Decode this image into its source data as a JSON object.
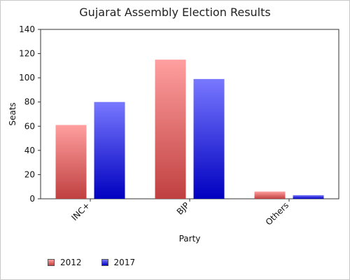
{
  "chart_data": {
    "type": "bar",
    "title": "Gujarat Assembly Election Results",
    "xlabel": "Party",
    "ylabel": "Seats",
    "categories": [
      "INC+",
      "BJP",
      "Others"
    ],
    "series": [
      {
        "name": "2012",
        "values": [
          61,
          115,
          6
        ],
        "color_top": "#ff9f9f",
        "color_bottom": "#c04040"
      },
      {
        "name": "2017",
        "values": [
          80,
          99,
          3
        ],
        "color_top": "#7878ff",
        "color_bottom": "#0000c0"
      }
    ],
    "ylim": [
      0,
      140
    ],
    "yticks": [
      0,
      20,
      40,
      60,
      80,
      100,
      120,
      140
    ],
    "grid": false,
    "legend_position": "bottom-left"
  }
}
